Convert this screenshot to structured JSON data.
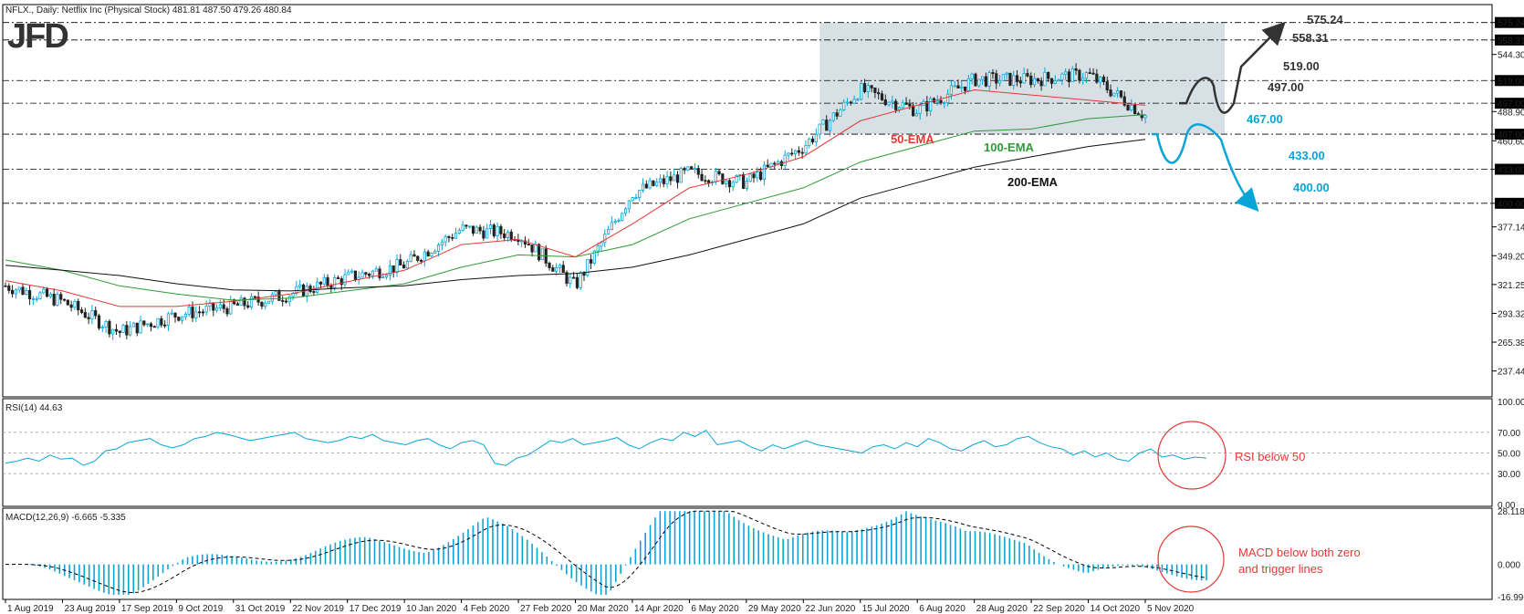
{
  "header": {
    "title": "NFLX., Daily:  Netflix Inc (Physical Stock)  481.81 487.50 479.26 480.84"
  },
  "logo": {
    "text": "JFD"
  },
  "colors": {
    "bull": "#0aa5d8",
    "bear": "#222222",
    "ema50": "#e53935",
    "ema100": "#2e9b35",
    "ema200": "#111111",
    "zone": "#c9d6db",
    "up_arrow": "#333333",
    "down_arrow": "#0aa5d8",
    "circle": "#e53935"
  },
  "chart_data": [
    {
      "type": "candlestick",
      "title": "",
      "x": [
        "1 Aug 2019",
        "23 Aug 2019",
        "17 Sep 2019",
        "9 Oct 2019",
        "31 Oct 2019",
        "22 Nov 2019",
        "17 Dec 2019",
        "10 Jan 2020",
        "4 Feb 2020",
        "27 Feb 2020",
        "20 Mar 2020",
        "14 Apr 2020",
        "6 May 2020",
        "29 May 2020",
        "22 Jun 2020",
        "15 Jul 2020",
        "6 Aug 2020",
        "28 Aug 2020",
        "22 Sep 2020",
        "14 Oct 2020",
        "5 Nov 2020"
      ],
      "close": [
        320,
        305,
        275,
        292,
        300,
        312,
        328,
        340,
        375,
        370,
        320,
        410,
        430,
        420,
        455,
        510,
        490,
        520,
        520,
        525,
        485
      ],
      "y_ticks": [
        "575.24",
        "558.31",
        "544.30",
        "519.00",
        "497.00",
        "488.90",
        "467.00",
        "460.60",
        "433.00",
        "400.00",
        "377.14",
        "349.20",
        "321.25",
        "293.32",
        "265.38",
        "237.44"
      ],
      "ylim": [
        215,
        590
      ],
      "horizontal_levels": [
        {
          "label": "575.24",
          "value": 575.24
        },
        {
          "label": "558.31",
          "value": 558.31
        },
        {
          "label": "519.00",
          "value": 519.0
        },
        {
          "label": "497.00",
          "value": 497.0
        },
        {
          "label": "467.00",
          "value": 467.0
        },
        {
          "label": "433.00",
          "value": 433.0
        },
        {
          "label": "400.00",
          "value": 400.0
        }
      ],
      "range_zone": {
        "from": "22 Jun 2020",
        "upper": 575.24,
        "lower": 467.0
      },
      "series": [
        {
          "name": "50-EMA",
          "values": [
            325,
            315,
            300,
            300,
            305,
            312,
            324,
            335,
            360,
            365,
            348,
            380,
            415,
            428,
            445,
            480,
            495,
            510,
            505,
            500,
            495
          ]
        },
        {
          "name": "100-EMA",
          "values": [
            345,
            335,
            320,
            312,
            306,
            308,
            315,
            322,
            338,
            350,
            348,
            360,
            385,
            400,
            415,
            440,
            455,
            470,
            472,
            482,
            486
          ]
        },
        {
          "name": "200-EMA",
          "values": [
            340,
            335,
            330,
            322,
            316,
            315,
            318,
            320,
            326,
            330,
            332,
            338,
            350,
            365,
            380,
            405,
            420,
            435,
            445,
            455,
            462
          ]
        }
      ],
      "annotations": {
        "ema_labels": [
          "50-EMA",
          "100-EMA",
          "200-EMA"
        ],
        "upside_path": [
          "497.00",
          "519.00",
          "558.31",
          "575.24"
        ],
        "downside_path": [
          "467.00",
          "433.00",
          "400.00"
        ]
      }
    },
    {
      "type": "line",
      "title": "RSI(14) 44.63",
      "ylim": [
        0,
        100
      ],
      "y_ticks": [
        "100.00",
        "70.00",
        "50.00",
        "30.00",
        "0.00"
      ],
      "levels": [
        70,
        50,
        30
      ],
      "values": [
        40,
        42,
        45,
        42,
        48,
        44,
        45,
        38,
        42,
        52,
        54,
        60,
        62,
        64,
        58,
        55,
        58,
        64,
        66,
        70,
        68,
        65,
        62,
        64,
        66,
        68,
        70,
        64,
        62,
        60,
        62,
        66,
        64,
        68,
        62,
        60,
        58,
        62,
        64,
        58,
        54,
        60,
        62,
        58,
        40,
        38,
        45,
        48,
        55,
        62,
        60,
        64,
        58,
        60,
        62,
        65,
        58,
        54,
        60,
        64,
        62,
        70,
        66,
        72,
        58,
        60,
        62,
        56,
        52,
        58,
        54,
        58,
        62,
        58,
        56,
        54,
        52,
        50,
        56,
        58,
        54,
        60,
        56,
        64,
        60,
        54,
        52,
        58,
        62,
        56,
        58,
        64,
        66,
        60,
        56,
        54,
        48,
        52,
        46,
        50,
        44,
        42,
        50,
        54,
        46,
        48,
        44,
        46,
        45
      ],
      "annotation": "RSI below 50"
    },
    {
      "type": "bar",
      "title": "MACD(12,26,9) -6.665 -5.335",
      "y_ticks": [
        "28.118",
        "0.000",
        "-16.995"
      ],
      "ylim": [
        -16.995,
        28.118
      ],
      "annotation_lines": [
        "MACD below both zero",
        "and trigger lines"
      ]
    }
  ]
}
